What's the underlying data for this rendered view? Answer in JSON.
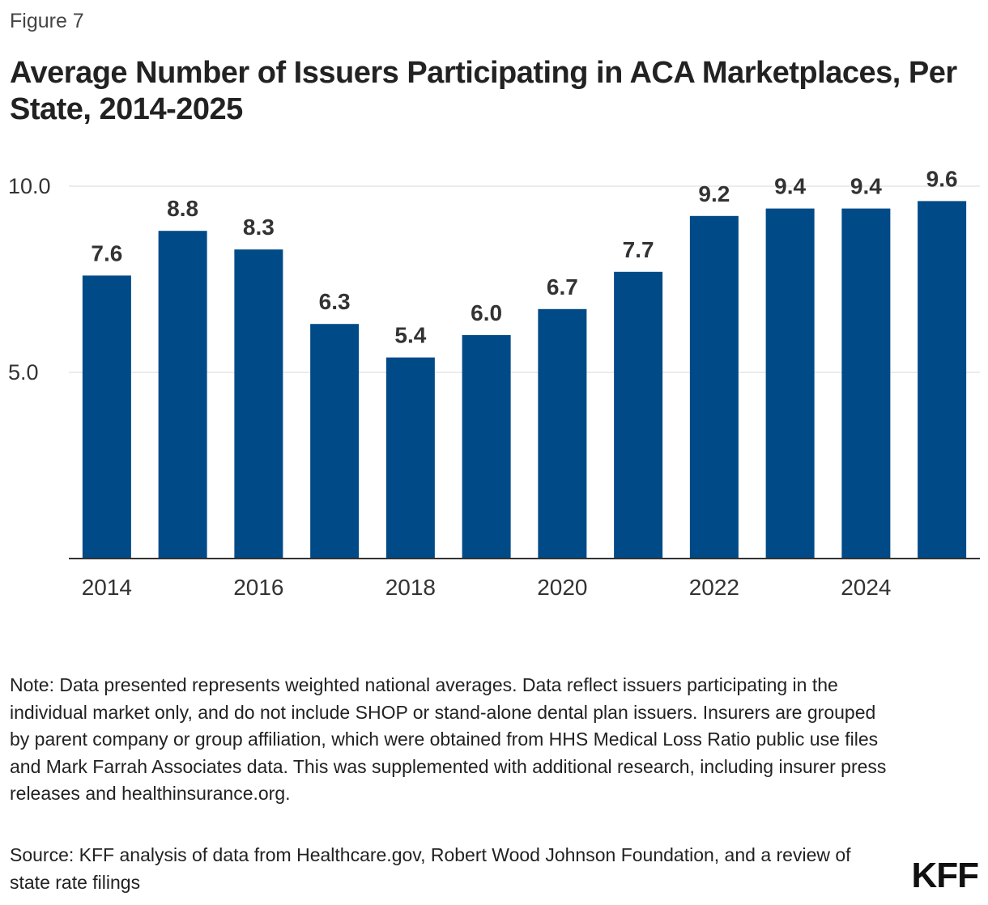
{
  "figure_label": "Figure 7",
  "title": "Average Number of Issuers Participating in ACA Marketplaces, Per State, 2014-2025",
  "chart_data": {
    "type": "bar",
    "categories": [
      "2014",
      "2015",
      "2016",
      "2017",
      "2018",
      "2019",
      "2020",
      "2021",
      "2022",
      "2023",
      "2024",
      "2025"
    ],
    "values": [
      7.6,
      8.8,
      8.3,
      6.3,
      5.4,
      6.0,
      6.7,
      7.7,
      9.2,
      9.4,
      9.4,
      9.6
    ],
    "data_labels": [
      "7.6",
      "8.8",
      "8.3",
      "6.3",
      "5.4",
      "6.0",
      "6.7",
      "7.7",
      "9.2",
      "9.4",
      "9.4",
      "9.6"
    ],
    "x_tick_labels": [
      "2014",
      "2016",
      "2018",
      "2020",
      "2022",
      "2024"
    ],
    "y_ticks": [
      5.0,
      10.0
    ],
    "y_tick_labels": [
      "5.0",
      "10.0"
    ],
    "ylim": [
      0,
      10
    ],
    "title": "Average Number of Issuers Participating in ACA Marketplaces, Per State, 2014-2025",
    "xlabel": "",
    "ylabel": "",
    "grid": true,
    "bar_color": "#004A87"
  },
  "note": "Note: Data presented represents weighted national averages. Data reflect issuers participating in the individual market only, and do not include SHOP or stand-alone dental plan issuers. Insurers are grouped by parent company or group affiliation, which were obtained from HHS Medical Loss Ratio public use files and Mark Farrah Associates data. This was supplemented with additional research, including insurer press releases and healthinsurance.org.",
  "source": "Source: KFF analysis of data from Healthcare.gov, Robert Wood Johnson Foundation, and a review of state rate filings",
  "logo": "KFF"
}
